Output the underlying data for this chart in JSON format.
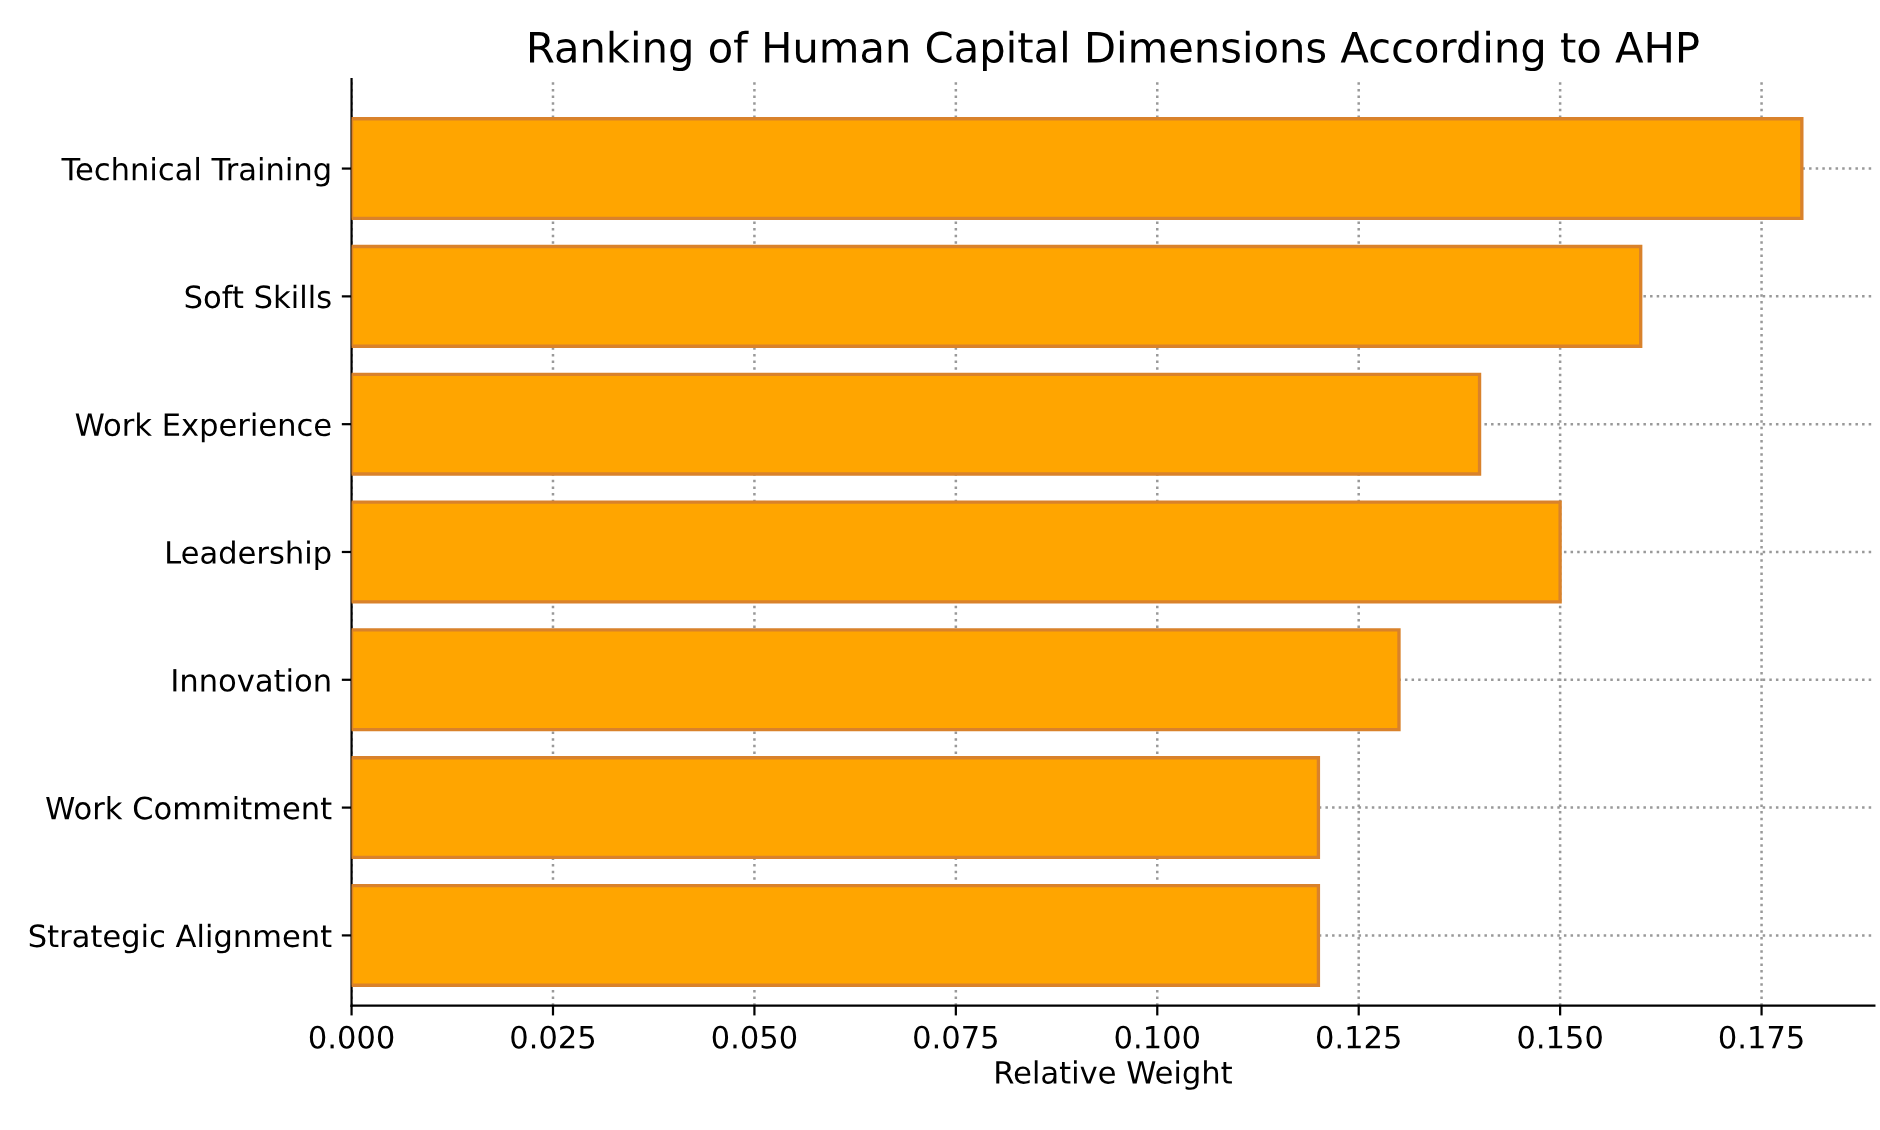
{
  "chart_data": {
    "type": "bar",
    "orientation": "horizontal",
    "title": "Ranking of Human Capital Dimensions According to AHP",
    "xlabel": "Relative Weight",
    "categories": [
      "Technical Training",
      "Soft Skills",
      "Work Experience",
      "Leadership",
      "Innovation",
      "Work Commitment",
      "Strategic Alignment"
    ],
    "values": [
      0.18,
      0.16,
      0.14,
      0.15,
      0.13,
      0.12,
      0.12
    ],
    "color": "#ffa500",
    "xlim": [
      0,
      0.189
    ],
    "xticks": [
      {
        "value": 0,
        "label": "0.000"
      },
      {
        "value": 0.025,
        "label": "0.025"
      },
      {
        "value": 0.05,
        "label": "0.050"
      },
      {
        "value": 0.075,
        "label": "0.075"
      },
      {
        "value": 0.1,
        "label": "0.100"
      },
      {
        "value": 0.125,
        "label": "0.125"
      },
      {
        "value": 0.15,
        "label": "0.150"
      },
      {
        "value": 0.175,
        "label": "0.175"
      }
    ],
    "grid": true
  }
}
